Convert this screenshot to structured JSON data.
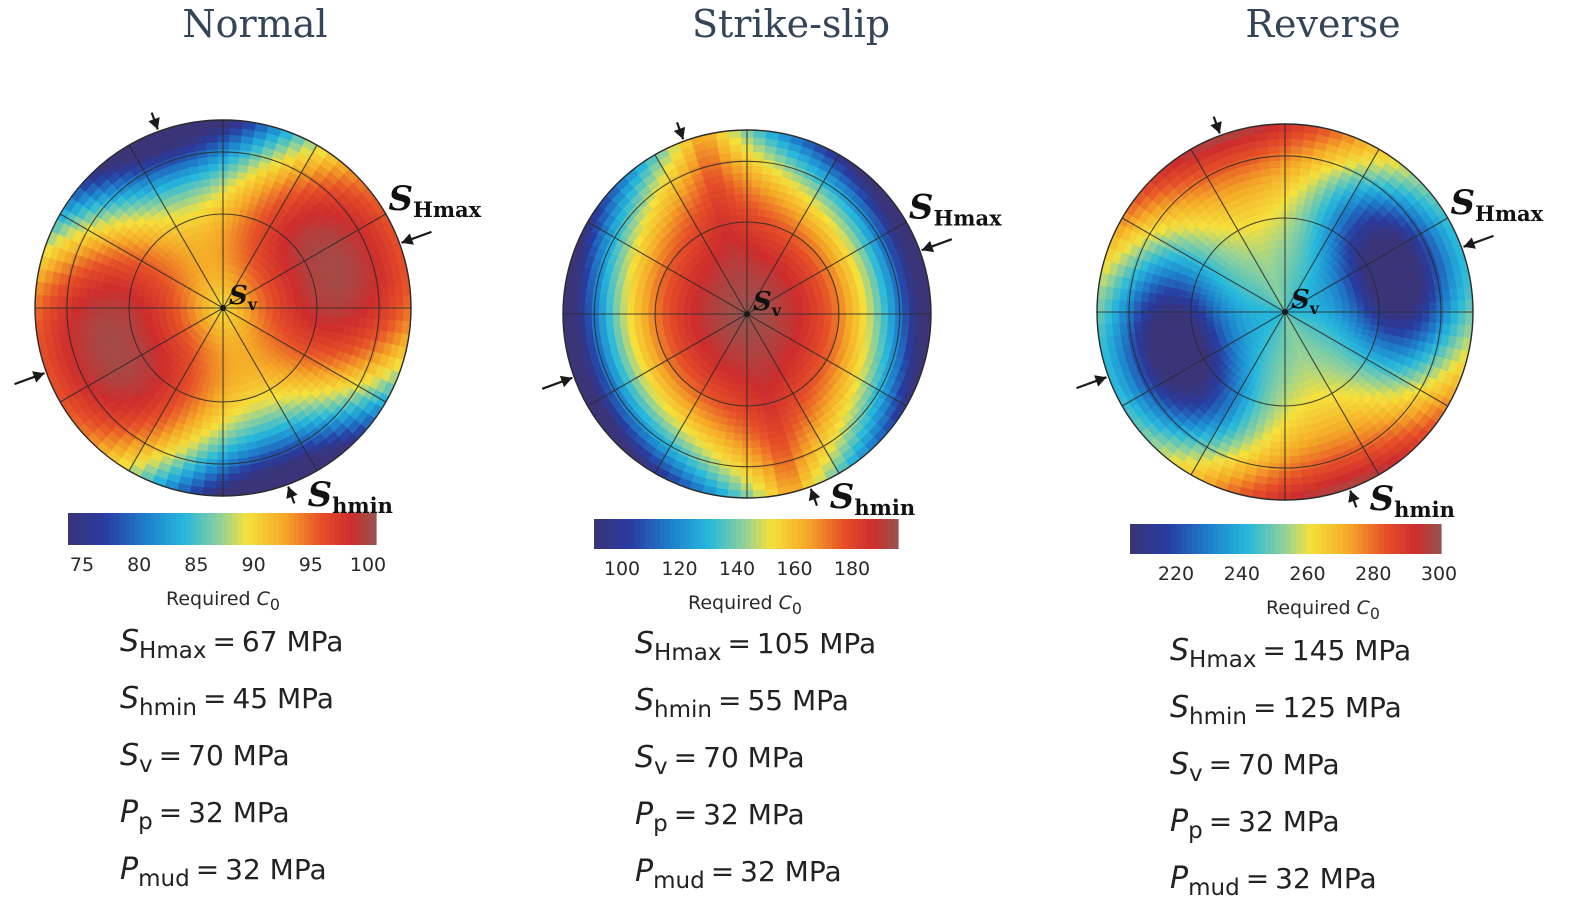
{
  "panels": [
    {
      "title": "Normal",
      "labels": {
        "shmax_main": "S",
        "shmax_sub": "Hmax",
        "shmin_main": "S",
        "shmin_sub": "hmin",
        "sv_main": "S",
        "sv_sub": "v"
      },
      "colorbar": {
        "ticks": [
          "75",
          "80",
          "85",
          "90",
          "95",
          "100"
        ],
        "title_text": "Required ",
        "title_sym": "C",
        "title_sub": "0"
      },
      "params": [
        {
          "sym": "S",
          "sub": "Hmax",
          "value": "67 MPa"
        },
        {
          "sym": "S",
          "sub": "hmin",
          "value": "45 MPa"
        },
        {
          "sym": "S",
          "sub": "v",
          "value": "70 MPa"
        },
        {
          "sym": "P",
          "sub": "p",
          "value": "32 MPa"
        },
        {
          "sym": "P",
          "sub": "mud",
          "value": "32 MPa"
        }
      ],
      "field": {
        "mode": "normal"
      }
    },
    {
      "title": "Strike-slip",
      "labels": {
        "shmax_main": "S",
        "shmax_sub": "Hmax",
        "shmin_main": "S",
        "shmin_sub": "hmin",
        "sv_main": "S",
        "sv_sub": "v"
      },
      "colorbar": {
        "ticks": [
          "100",
          "120",
          "140",
          "160",
          "180"
        ],
        "title_text": "Required ",
        "title_sym": "C",
        "title_sub": "0"
      },
      "params": [
        {
          "sym": "S",
          "sub": "Hmax",
          "value": "105 MPa"
        },
        {
          "sym": "S",
          "sub": "hmin",
          "value": "55 MPa"
        },
        {
          "sym": "S",
          "sub": "v",
          "value": "70 MPa"
        },
        {
          "sym": "P",
          "sub": "p",
          "value": "32 MPa"
        },
        {
          "sym": "P",
          "sub": "mud",
          "value": "32 MPa"
        }
      ],
      "field": {
        "mode": "strike"
      }
    },
    {
      "title": "Reverse",
      "labels": {
        "shmax_main": "S",
        "shmax_sub": "Hmax",
        "shmin_main": "S",
        "shmin_sub": "hmin",
        "sv_main": "S",
        "sv_sub": "v"
      },
      "colorbar": {
        "ticks": [
          "220",
          "240",
          "260",
          "280",
          "300"
        ],
        "title_text": "Required ",
        "title_sym": "C",
        "title_sub": "0"
      },
      "params": [
        {
          "sym": "S",
          "sub": "Hmax",
          "value": "145 MPa"
        },
        {
          "sym": "S",
          "sub": "hmin",
          "value": "125 MPa"
        },
        {
          "sym": "S",
          "sub": "v",
          "value": "70 MPa"
        },
        {
          "sym": "P",
          "sub": "p",
          "value": "32 MPa"
        },
        {
          "sym": "P",
          "sub": "mud",
          "value": "32 MPa"
        }
      ],
      "field": {
        "mode": "reverse"
      }
    }
  ]
}
